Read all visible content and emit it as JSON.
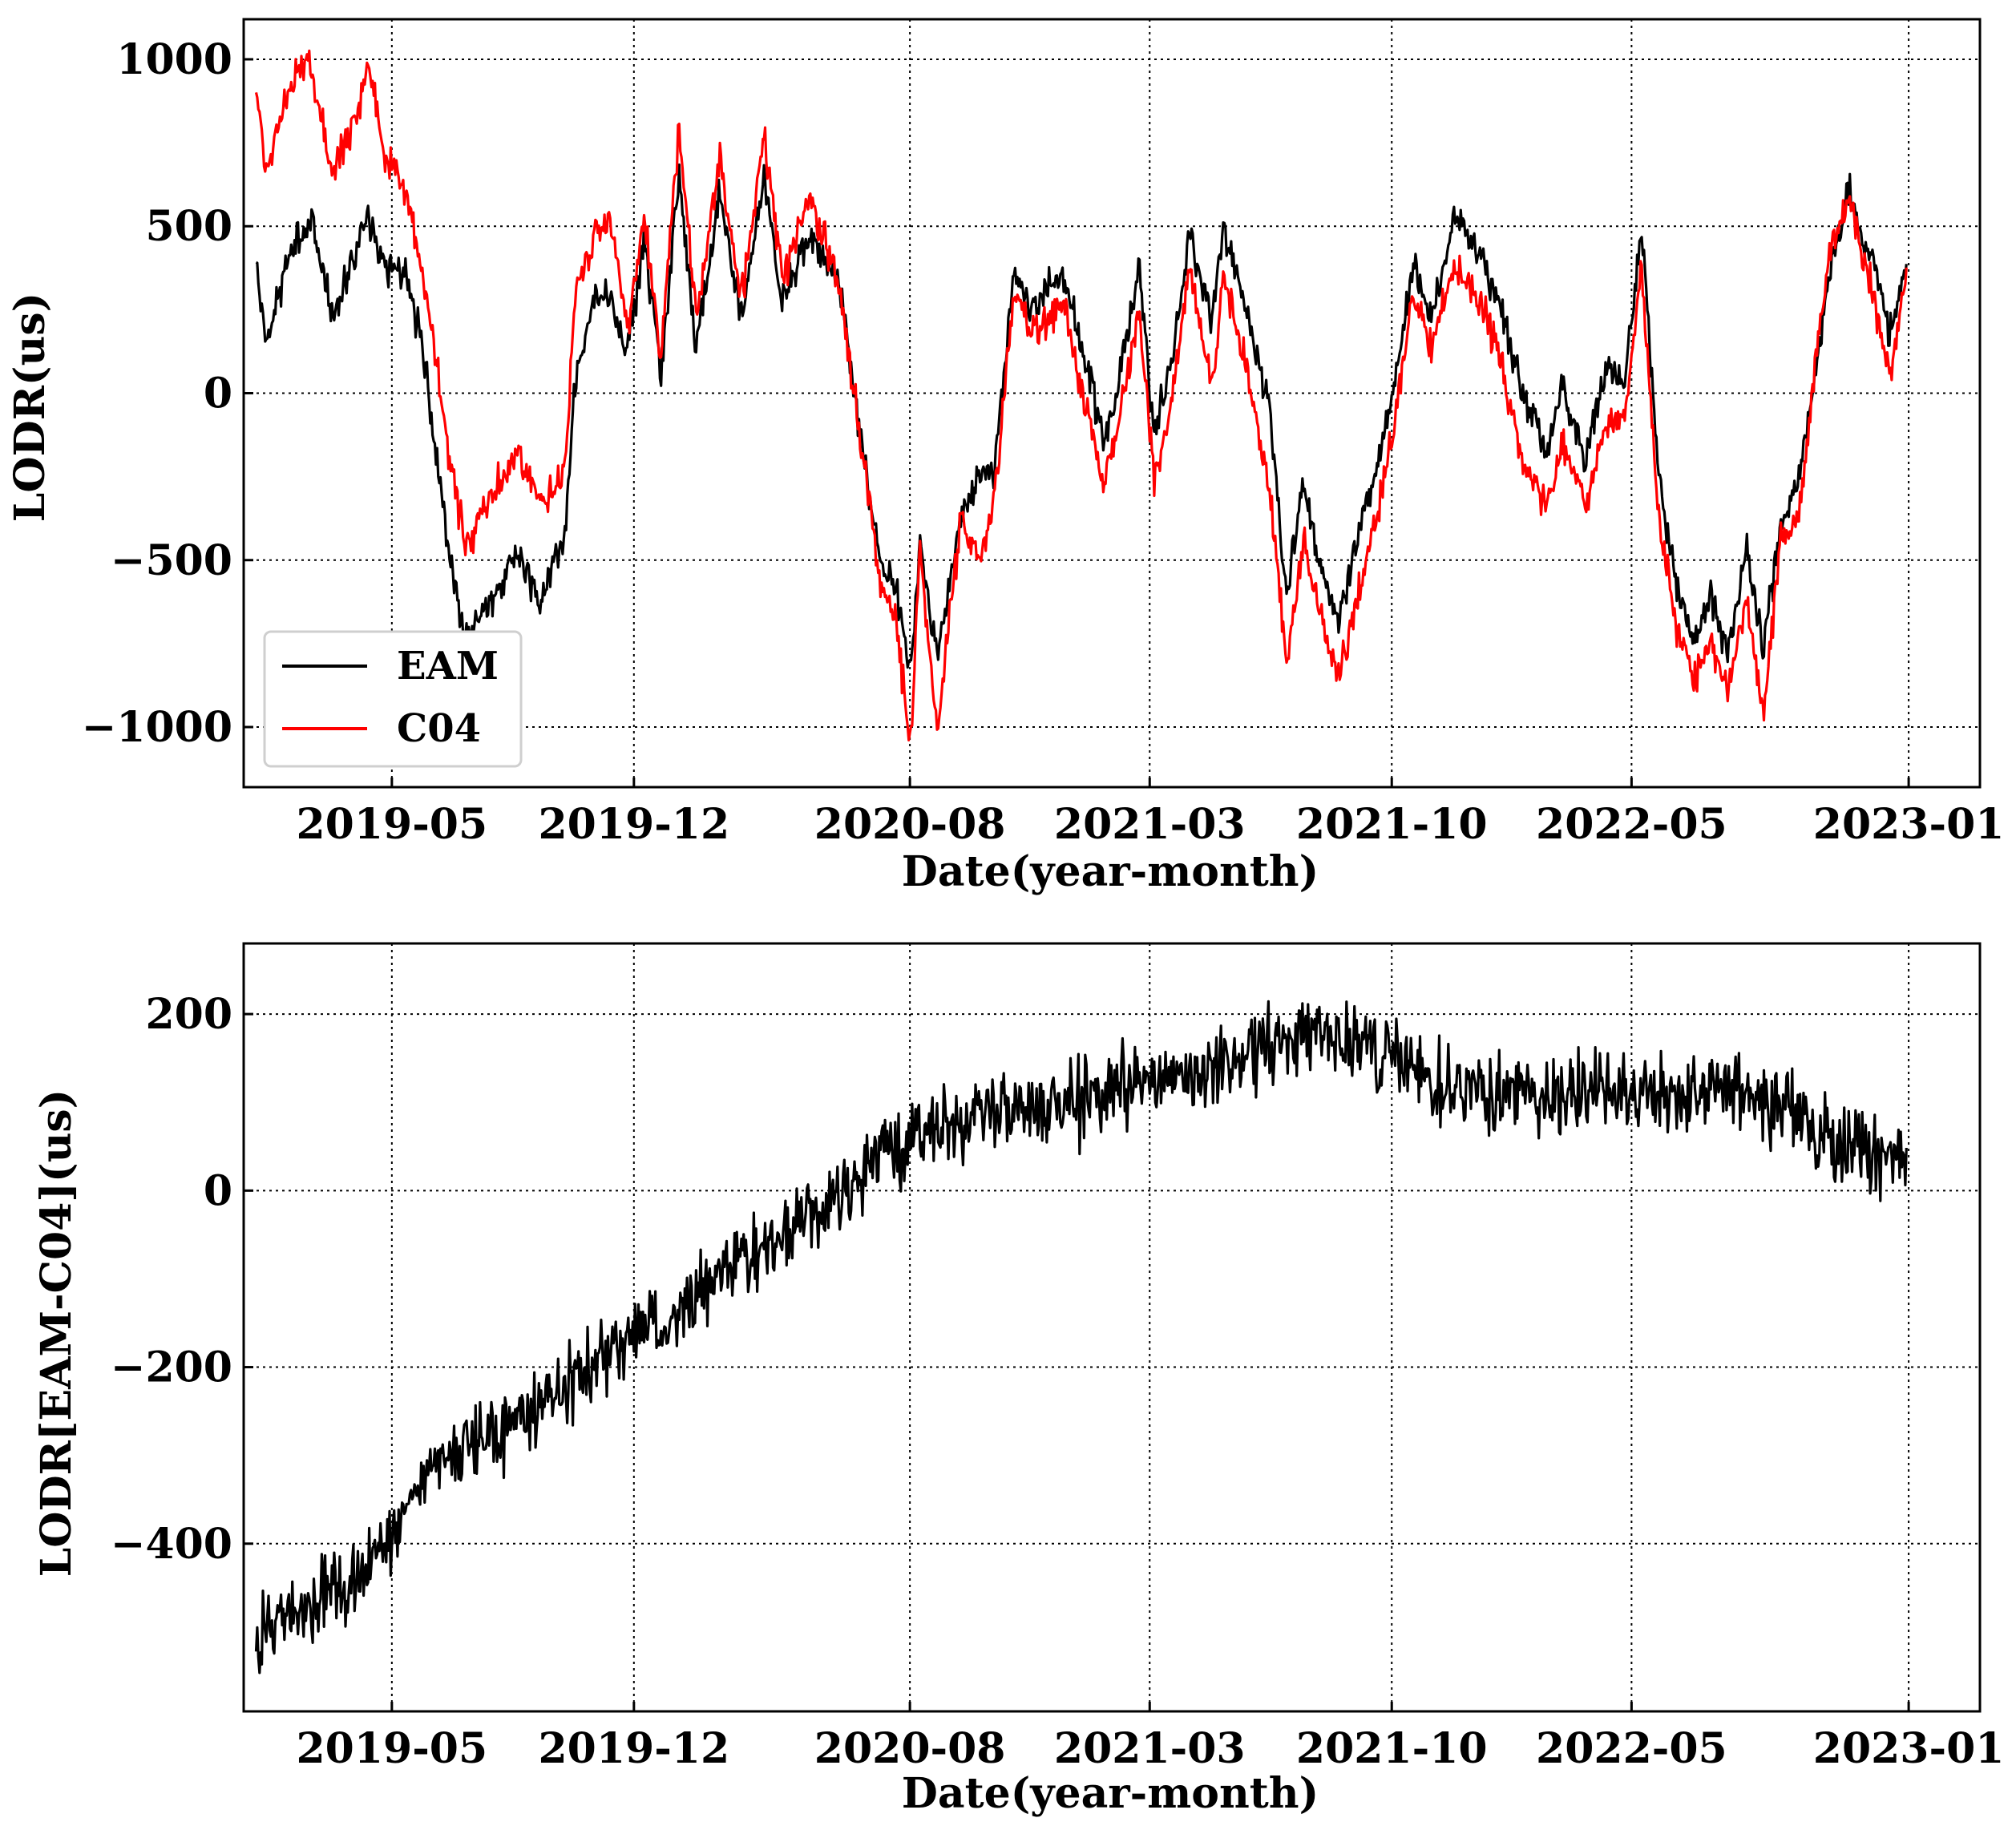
{
  "colors": {
    "eam": "#000000",
    "c04": "#ff0000",
    "grid": "#000000",
    "frame": "#000000"
  },
  "chart_data": [
    {
      "type": "line",
      "title": "",
      "xlabel": "Date(year-month)",
      "ylabel": "LODR(us)",
      "x_ticks": [
        "2019-05",
        "2019-12",
        "2020-08",
        "2021-03",
        "2021-10",
        "2022-05",
        "2023-01"
      ],
      "y_ticks": [
        "1000",
        "500",
        "0",
        "−500",
        "−1000"
      ],
      "ylim": [
        -1180,
        1120
      ],
      "xlim": [
        "2018-12-21",
        "2023-03-05"
      ],
      "grid": true,
      "legend": {
        "position": "lower-left",
        "entries": [
          "EAM",
          "C04"
        ]
      },
      "series": [
        {
          "name": "EAM",
          "color": "#000000",
          "points": [
            [
              "2019-01-01",
              390
            ],
            [
              "2019-01-10",
              150
            ],
            [
              "2019-02-01",
              430
            ],
            [
              "2019-02-20",
              520
            ],
            [
              "2019-03-10",
              210
            ],
            [
              "2019-04-01",
              450
            ],
            [
              "2019-04-10",
              540
            ],
            [
              "2019-04-25",
              370
            ],
            [
              "2019-05-15",
              360
            ],
            [
              "2019-06-01",
              50
            ],
            [
              "2019-06-20",
              -470
            ],
            [
              "2019-07-05",
              -740
            ],
            [
              "2019-08-01",
              -600
            ],
            [
              "2019-08-20",
              -470
            ],
            [
              "2019-09-10",
              -630
            ],
            [
              "2019-10-01",
              -400
            ],
            [
              "2019-10-10",
              20
            ],
            [
              "2019-10-25",
              280
            ],
            [
              "2019-11-10",
              280
            ],
            [
              "2019-11-25",
              110
            ],
            [
              "2019-12-10",
              470
            ],
            [
              "2019-12-25",
              60
            ],
            [
              "2020-01-10",
              650
            ],
            [
              "2020-01-25",
              130
            ],
            [
              "2020-02-15",
              600
            ],
            [
              "2020-03-05",
              210
            ],
            [
              "2020-03-25",
              650
            ],
            [
              "2020-04-10",
              280
            ],
            [
              "2020-05-05",
              480
            ],
            [
              "2020-06-01",
              300
            ],
            [
              "2020-06-20",
              -160
            ],
            [
              "2020-07-05",
              -500
            ],
            [
              "2020-07-20",
              -600
            ],
            [
              "2020-08-01",
              -840
            ],
            [
              "2020-08-10",
              -460
            ],
            [
              "2020-08-25",
              -800
            ],
            [
              "2020-09-15",
              -360
            ],
            [
              "2020-10-01",
              -250
            ],
            [
              "2020-10-15",
              -230
            ],
            [
              "2020-11-01",
              360
            ],
            [
              "2020-11-15",
              250
            ],
            [
              "2020-12-15",
              350
            ],
            [
              "2021-01-01",
              120
            ],
            [
              "2021-01-20",
              -140
            ],
            [
              "2021-02-01",
              20
            ],
            [
              "2021-02-20",
              400
            ],
            [
              "2021-03-05",
              -120
            ],
            [
              "2021-03-20",
              100
            ],
            [
              "2021-04-05",
              470
            ],
            [
              "2021-04-25",
              230
            ],
            [
              "2021-05-05",
              510
            ],
            [
              "2021-05-25",
              250
            ],
            [
              "2021-06-15",
              -50
            ],
            [
              "2021-06-30",
              -610
            ],
            [
              "2021-07-15",
              -260
            ],
            [
              "2021-07-25",
              -450
            ],
            [
              "2021-08-15",
              -690
            ],
            [
              "2021-09-01",
              -430
            ],
            [
              "2021-09-20",
              -200
            ],
            [
              "2021-10-05",
              70
            ],
            [
              "2021-10-20",
              380
            ],
            [
              "2021-11-05",
              220
            ],
            [
              "2021-11-25",
              520
            ],
            [
              "2021-12-20",
              410
            ],
            [
              "2022-01-05",
              250
            ],
            [
              "2022-01-25",
              0
            ],
            [
              "2022-02-15",
              -180
            ],
            [
              "2022-03-01",
              20
            ],
            [
              "2022-03-20",
              -200
            ],
            [
              "2022-04-10",
              70
            ],
            [
              "2022-04-25",
              30
            ],
            [
              "2022-05-10",
              500
            ],
            [
              "2022-05-25",
              -250
            ],
            [
              "2022-06-10",
              -580
            ],
            [
              "2022-06-25",
              -750
            ],
            [
              "2022-07-10",
              -600
            ],
            [
              "2022-07-25",
              -790
            ],
            [
              "2022-08-10",
              -460
            ],
            [
              "2022-08-25",
              -770
            ],
            [
              "2022-09-10",
              -400
            ],
            [
              "2022-09-25",
              -270
            ],
            [
              "2022-10-10",
              60
            ],
            [
              "2022-10-25",
              380
            ],
            [
              "2022-11-10",
              620
            ],
            [
              "2022-11-20",
              470
            ],
            [
              "2022-12-05",
              350
            ],
            [
              "2022-12-15",
              150
            ],
            [
              "2022-12-30",
              400
            ]
          ]
        },
        {
          "name": "C04",
          "color": "#ff0000",
          "points": [
            [
              "2019-01-01",
              910
            ],
            [
              "2019-01-10",
              650
            ],
            [
              "2019-02-01",
              930
            ],
            [
              "2019-02-15",
              1010
            ],
            [
              "2019-03-10",
              650
            ],
            [
              "2019-04-01",
              850
            ],
            [
              "2019-04-10",
              990
            ],
            [
              "2019-04-25",
              720
            ],
            [
              "2019-05-15",
              580
            ],
            [
              "2019-06-01",
              290
            ],
            [
              "2019-06-20",
              -180
            ],
            [
              "2019-07-05",
              -460
            ],
            [
              "2019-08-01",
              -290
            ],
            [
              "2019-08-20",
              -170
            ],
            [
              "2019-09-10",
              -330
            ],
            [
              "2019-10-01",
              -240
            ],
            [
              "2019-10-10",
              310
            ],
            [
              "2019-10-25",
              440
            ],
            [
              "2019-11-10",
              520
            ],
            [
              "2019-11-25",
              200
            ],
            [
              "2019-12-10",
              530
            ],
            [
              "2019-12-25",
              110
            ],
            [
              "2020-01-10",
              800
            ],
            [
              "2020-01-25",
              220
            ],
            [
              "2020-02-15",
              700
            ],
            [
              "2020-03-05",
              280
            ],
            [
              "2020-03-25",
              770
            ],
            [
              "2020-04-10",
              350
            ],
            [
              "2020-05-05",
              580
            ],
            [
              "2020-06-01",
              300
            ],
            [
              "2020-06-20",
              -180
            ],
            [
              "2020-07-05",
              -560
            ],
            [
              "2020-07-20",
              -680
            ],
            [
              "2020-08-01",
              -1070
            ],
            [
              "2020-08-10",
              -470
            ],
            [
              "2020-08-25",
              -1010
            ],
            [
              "2020-09-15",
              -380
            ],
            [
              "2020-10-01",
              -500
            ],
            [
              "2020-10-15",
              -320
            ],
            [
              "2020-11-01",
              320
            ],
            [
              "2020-11-15",
              170
            ],
            [
              "2020-12-15",
              270
            ],
            [
              "2021-01-01",
              -10
            ],
            [
              "2021-01-20",
              -280
            ],
            [
              "2021-02-01",
              -90
            ],
            [
              "2021-02-20",
              260
            ],
            [
              "2021-03-05",
              -270
            ],
            [
              "2021-03-20",
              -30
            ],
            [
              "2021-04-05",
              390
            ],
            [
              "2021-04-25",
              0
            ],
            [
              "2021-05-05",
              370
            ],
            [
              "2021-05-25",
              80
            ],
            [
              "2021-06-15",
              -290
            ],
            [
              "2021-06-30",
              -800
            ],
            [
              "2021-07-15",
              -440
            ],
            [
              "2021-07-25",
              -600
            ],
            [
              "2021-08-15",
              -860
            ],
            [
              "2021-09-01",
              -600
            ],
            [
              "2021-09-20",
              -340
            ],
            [
              "2021-10-05",
              -70
            ],
            [
              "2021-10-20",
              290
            ],
            [
              "2021-11-05",
              130
            ],
            [
              "2021-11-25",
              380
            ],
            [
              "2021-12-20",
              250
            ],
            [
              "2022-01-05",
              100
            ],
            [
              "2022-01-25",
              -210
            ],
            [
              "2022-02-15",
              -330
            ],
            [
              "2022-03-01",
              -150
            ],
            [
              "2022-03-20",
              -330
            ],
            [
              "2022-04-10",
              -80
            ],
            [
              "2022-04-25",
              -70
            ],
            [
              "2022-05-10",
              380
            ],
            [
              "2022-05-25",
              -370
            ],
            [
              "2022-06-10",
              -700
            ],
            [
              "2022-06-25",
              -860
            ],
            [
              "2022-07-10",
              -740
            ],
            [
              "2022-07-25",
              -900
            ],
            [
              "2022-08-10",
              -620
            ],
            [
              "2022-08-25",
              -950
            ],
            [
              "2022-09-10",
              -440
            ],
            [
              "2022-09-25",
              -400
            ],
            [
              "2022-10-10",
              80
            ],
            [
              "2022-10-25",
              460
            ],
            [
              "2022-11-10",
              580
            ],
            [
              "2022-11-20",
              430
            ],
            [
              "2022-12-05",
              230
            ],
            [
              "2022-12-15",
              40
            ],
            [
              "2022-12-30",
              360
            ]
          ]
        }
      ]
    },
    {
      "type": "line",
      "title": "",
      "xlabel": "Date(year-month)",
      "ylabel": "LODR[EAM-C04](us)",
      "x_ticks": [
        "2019-05",
        "2019-12",
        "2020-08",
        "2021-03",
        "2021-10",
        "2022-05",
        "2023-01"
      ],
      "y_ticks": [
        "200",
        "0",
        "−200",
        "−400"
      ],
      "ylim": [
        -590,
        280
      ],
      "xlim": [
        "2018-12-21",
        "2023-03-05"
      ],
      "grid": true,
      "series": [
        {
          "color": "#000000",
          "points": [
            [
              "2019-01-01",
              -510
            ],
            [
              "2019-02-01",
              -480
            ],
            [
              "2019-03-01",
              -460
            ],
            [
              "2019-04-01",
              -440
            ],
            [
              "2019-05-01",
              -390
            ],
            [
              "2019-06-01",
              -320
            ],
            [
              "2019-07-01",
              -300
            ],
            [
              "2019-08-01",
              -270
            ],
            [
              "2019-09-01",
              -250
            ],
            [
              "2019-10-01",
              -220
            ],
            [
              "2019-11-01",
              -190
            ],
            [
              "2019-12-01",
              -150
            ],
            [
              "2020-01-01",
              -150
            ],
            [
              "2020-02-01",
              -110
            ],
            [
              "2020-03-01",
              -80
            ],
            [
              "2020-04-01",
              -60
            ],
            [
              "2020-05-01",
              -30
            ],
            [
              "2020-06-01",
              0
            ],
            [
              "2020-07-01",
              40
            ],
            [
              "2020-08-01",
              60
            ],
            [
              "2020-09-01",
              70
            ],
            [
              "2020-10-01",
              80
            ],
            [
              "2020-11-01",
              90
            ],
            [
              "2020-12-01",
              90
            ],
            [
              "2021-01-01",
              100
            ],
            [
              "2021-02-01",
              120
            ],
            [
              "2021-03-01",
              130
            ],
            [
              "2021-04-01",
              130
            ],
            [
              "2021-05-01",
              140
            ],
            [
              "2021-06-01",
              160
            ],
            [
              "2021-07-01",
              170
            ],
            [
              "2021-08-01",
              180
            ],
            [
              "2021-09-01",
              170
            ],
            [
              "2021-10-01",
              150
            ],
            [
              "2021-11-01",
              130
            ],
            [
              "2021-12-01",
              120
            ],
            [
              "2022-01-01",
              110
            ],
            [
              "2022-02-01",
              110
            ],
            [
              "2022-03-01",
              110
            ],
            [
              "2022-04-01",
              120
            ],
            [
              "2022-05-01",
              110
            ],
            [
              "2022-06-01",
              100
            ],
            [
              "2022-07-01",
              110
            ],
            [
              "2022-08-01",
              120
            ],
            [
              "2022-09-01",
              100
            ],
            [
              "2022-10-01",
              80
            ],
            [
              "2022-11-01",
              50
            ],
            [
              "2022-12-01",
              50
            ],
            [
              "2022-12-30",
              40
            ]
          ]
        }
      ]
    }
  ]
}
